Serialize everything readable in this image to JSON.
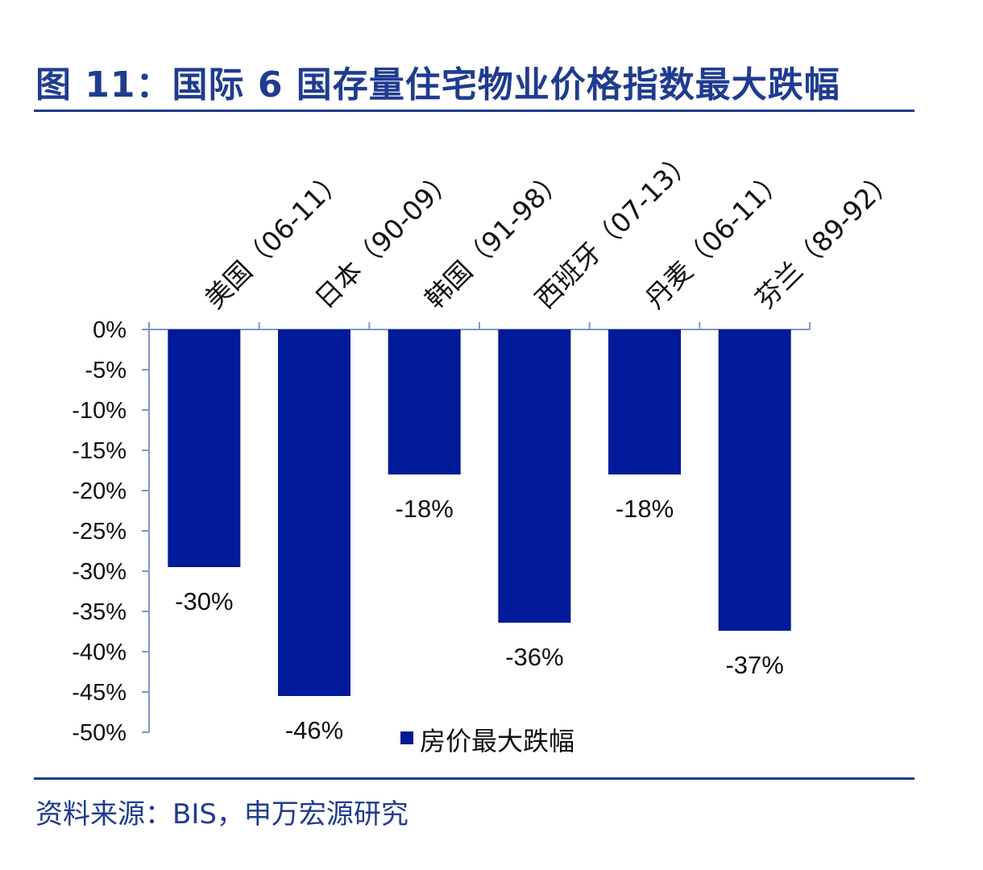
{
  "header": {
    "title": "图 11：国际 6 国存量住宅物业价格指数最大跌幅"
  },
  "footer": {
    "source": "资料来源：BIS，申万宏源研究"
  },
  "colors": {
    "bar": "#001a99",
    "title": "#1f3c8f",
    "axis": "#7f96c8"
  },
  "chart_data": {
    "type": "bar",
    "categories": [
      "美国（06-11）",
      "日本（90-09）",
      "韩国（91-98）",
      "西班牙（07-13）",
      "丹麦（06-11）",
      "芬兰（89-92）"
    ],
    "series": [
      {
        "name": "房价最大跌幅",
        "values": [
          -29.5,
          -45.5,
          -18,
          -36.4,
          -18,
          -37.4
        ]
      }
    ],
    "data_labels": [
      "-30%",
      "-46%",
      "-18%",
      "-36%",
      "-18%",
      "-37%"
    ],
    "yticks": [
      "0%",
      "-5%",
      "-10%",
      "-15%",
      "-20%",
      "-25%",
      "-30%",
      "-35%",
      "-40%",
      "-45%",
      "-50%"
    ],
    "ylim": [
      -50,
      0
    ],
    "legend": "bottom-right",
    "grid": false
  }
}
